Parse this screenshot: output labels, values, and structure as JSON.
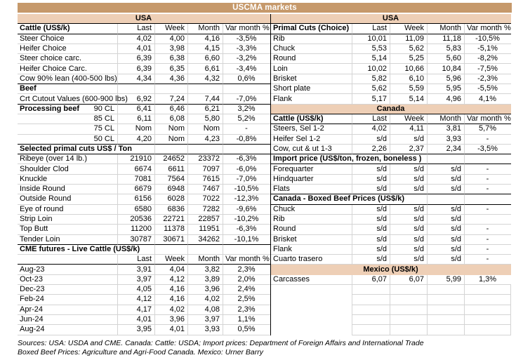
{
  "page": {
    "title": "USCMA markets",
    "footer_line1": "Sources: USA: USDA and CME. Canada: Cattle: USDA; Import prices: Department of Foreign Affairs and International Trade",
    "footer_line2": "Boxed Beef Prices: Agriculture and Agri-Food Canada. Mexico: Urner Barry"
  },
  "colors": {
    "band_dark": "#C6996B",
    "band_light": "#EECFB6",
    "grid": "#D4D4D4"
  },
  "columns": [
    "Last",
    "Week",
    "Month",
    "Var month %"
  ],
  "left_table": {
    "rows": [
      {
        "t": "band",
        "label": "USA"
      },
      {
        "t": "head",
        "label": "Cattle (US$/k)",
        "ha": true
      },
      {
        "t": "data",
        "label": "Steer Choice",
        "v": [
          "4,02",
          "4,00",
          "4,16",
          "-3,5%"
        ]
      },
      {
        "t": "data",
        "label": "Heifer Choice",
        "v": [
          "4,01",
          "3,98",
          "4,15",
          "-3,3%"
        ]
      },
      {
        "t": "data",
        "label": "Steer choice carc.",
        "v": [
          "6,39",
          "6,38",
          "6,60",
          "-3,2%"
        ]
      },
      {
        "t": "data",
        "label": "Heifer Choice Carc.",
        "v": [
          "6,39",
          "6,35",
          "6,61",
          "-3,4%"
        ]
      },
      {
        "t": "data",
        "label": "Cow 90% lean (400-500 lbs)",
        "v": [
          "4,34",
          "4,36",
          "4,32",
          "0,6%"
        ]
      },
      {
        "t": "sec",
        "label": "Beef",
        "span": 1,
        "ha": true
      },
      {
        "t": "data",
        "label": "Crt Cutout Values (600-900 lbs)",
        "v": [
          "6,92",
          "7,24",
          "7,44",
          "-7,0%"
        ]
      },
      {
        "t": "split",
        "label": "Processing beef",
        "sub": "90 CL",
        "v": [
          "6,41",
          "6,46",
          "6,21",
          "3,2%"
        ],
        "ha": true
      },
      {
        "t": "data",
        "label": "85 CL",
        "align": "right",
        "v": [
          "6,11",
          "6,08",
          "5,80",
          "5,2%"
        ]
      },
      {
        "t": "data",
        "label": "75 CL",
        "align": "right",
        "v": [
          "Nom",
          "Nom",
          "Nom",
          "-"
        ]
      },
      {
        "t": "data",
        "label": "50 CL",
        "align": "right",
        "v": [
          "4,20",
          "Nom",
          "4,23",
          "-0,8%"
        ]
      },
      {
        "t": "sec",
        "label": "Selected primal cuts US$ / Ton",
        "span": 2,
        "ha": true,
        "hb": true
      },
      {
        "t": "data",
        "label": "Ribeye (over 14 lb.)",
        "v": [
          "21910",
          "24652",
          "23372",
          "-6,3%"
        ]
      },
      {
        "t": "data",
        "label": "Shoulder Clod",
        "v": [
          "6674",
          "6611",
          "7097",
          "-6,0%"
        ]
      },
      {
        "t": "data",
        "label": "Knuckle",
        "v": [
          "7081",
          "7564",
          "7615",
          "-7,0%"
        ]
      },
      {
        "t": "data",
        "label": "Inside Round",
        "v": [
          "6679",
          "6948",
          "7467",
          "-10,5%"
        ]
      },
      {
        "t": "data",
        "label": "Outside Round",
        "v": [
          "6156",
          "6028",
          "7022",
          "-12,3%"
        ]
      },
      {
        "t": "data",
        "label": "Eye of round",
        "v": [
          "6580",
          "6836",
          "7282",
          "-9,6%"
        ]
      },
      {
        "t": "data",
        "label": "Strip Loin",
        "v": [
          "20536",
          "22721",
          "22857",
          "-10,2%"
        ]
      },
      {
        "t": "data",
        "label": "Top Butt",
        "v": [
          "11200",
          "11378",
          "11951",
          "-6,3%"
        ]
      },
      {
        "t": "data",
        "label": "Tender Loin",
        "v": [
          "30787",
          "30671",
          "34262",
          "-10,1%"
        ]
      },
      {
        "t": "sec",
        "label": "CME futures - Live Cattle (US$/k)",
        "span": 2,
        "ha": true
      },
      {
        "t": "head",
        "label": ""
      },
      {
        "t": "data",
        "label": "Aug-23",
        "v": [
          "3,91",
          "4,04",
          "3,82",
          "2,3%"
        ]
      },
      {
        "t": "data",
        "label": "Oct-23",
        "v": [
          "3,97",
          "4,12",
          "3,89",
          "2,0%"
        ]
      },
      {
        "t": "data",
        "label": "Dec-23",
        "v": [
          "4,05",
          "4,16",
          "3,96",
          "2,4%"
        ]
      },
      {
        "t": "data",
        "label": "Feb-24",
        "v": [
          "4,12",
          "4,16",
          "4,02",
          "2,5%"
        ]
      },
      {
        "t": "data",
        "label": "Apr-24",
        "v": [
          "4,17",
          "4,02",
          "4,08",
          "2,3%"
        ]
      },
      {
        "t": "data",
        "label": "Jun-24",
        "v": [
          "4,01",
          "3,96",
          "3,97",
          "1,1%"
        ]
      },
      {
        "t": "data",
        "label": "Aug-24",
        "v": [
          "3,95",
          "4,01",
          "3,93",
          "0,5%"
        ]
      }
    ]
  },
  "right_table": {
    "rows": [
      {
        "t": "band",
        "label": "USA"
      },
      {
        "t": "head",
        "label": "Primal Cuts (Choice)",
        "ha": true
      },
      {
        "t": "data",
        "label": "Rib",
        "v": [
          "10,01",
          "11,09",
          "11,18",
          "-10,5%"
        ]
      },
      {
        "t": "data",
        "label": "Chuck",
        "v": [
          "5,53",
          "5,62",
          "5,83",
          "-5,1%"
        ]
      },
      {
        "t": "data",
        "label": "Round",
        "v": [
          "5,14",
          "5,25",
          "5,60",
          "-8,2%"
        ]
      },
      {
        "t": "data",
        "label": "Loin",
        "v": [
          "10,02",
          "10,66",
          "10,84",
          "-7,5%"
        ]
      },
      {
        "t": "data",
        "label": "Brisket",
        "v": [
          "5,82",
          "6,10",
          "5,96",
          "-2,3%"
        ]
      },
      {
        "t": "data",
        "label": "Short plate",
        "v": [
          "5,62",
          "5,59",
          "5,95",
          "-5,5%"
        ]
      },
      {
        "t": "data",
        "label": "Flank",
        "v": [
          "5,17",
          "5,14",
          "4,96",
          "4,1%"
        ]
      },
      {
        "t": "band",
        "label": "Canada"
      },
      {
        "t": "head",
        "label": "Cattle (US$/k)",
        "ha": true
      },
      {
        "t": "data",
        "label": "Steers, Sel 1-2",
        "v": [
          "4,02",
          "4,11",
          "3,81",
          "5,7%"
        ]
      },
      {
        "t": "data",
        "label": "Heifer Sel 1-2",
        "v": [
          "s/d",
          "s/d",
          "3,93",
          "-"
        ]
      },
      {
        "t": "data",
        "label": "Cow, cut & ut 1-3",
        "v": [
          "2,26",
          "2,37",
          "2,34",
          "-3,5%"
        ]
      },
      {
        "t": "sec",
        "label": "Import price (US$/ton, frozen, boneless )",
        "span": 3,
        "ha": true,
        "hb": true
      },
      {
        "t": "data",
        "label": "Forequarter",
        "v": [
          "s/d",
          "s/d",
          "s/d",
          "-"
        ]
      },
      {
        "t": "data",
        "label": "Hindquarter",
        "v": [
          "s/d",
          "s/d",
          "s/d",
          "-"
        ]
      },
      {
        "t": "data",
        "label": "Flats",
        "v": [
          "s/d",
          "s/d",
          "s/d",
          "-"
        ]
      },
      {
        "t": "sec",
        "label": "Canada - Boxed Beef Prices (US$/k)",
        "span": 3,
        "ha": true,
        "hb": true
      },
      {
        "t": "data",
        "label": "Chuck",
        "v": [
          "s/d",
          "s/d",
          "s/d",
          "-"
        ]
      },
      {
        "t": "data",
        "label": "Rib",
        "v": [
          "s/d",
          "s/d",
          "s/d",
          ""
        ]
      },
      {
        "t": "data",
        "label": "Round",
        "v": [
          "s/d",
          "s/d",
          "s/d",
          "-"
        ]
      },
      {
        "t": "data",
        "label": "Brisket",
        "v": [
          "s/d",
          "s/d",
          "s/d",
          "-"
        ]
      },
      {
        "t": "data",
        "label": "Flank",
        "v": [
          "s/d",
          "s/d",
          "s/d",
          "-"
        ]
      },
      {
        "t": "data",
        "label": "Cuarto trasero",
        "v": [
          "s/d",
          "s/d",
          "s/d",
          "-"
        ]
      },
      {
        "t": "band",
        "label": "Mexico (US$/k)"
      },
      {
        "t": "data",
        "label": "Carcasses",
        "v": [
          "6,07",
          "6,07",
          "5,99",
          "1,3%"
        ]
      },
      {
        "t": "empty"
      },
      {
        "t": "empty"
      },
      {
        "t": "empty"
      },
      {
        "t": "empty"
      },
      {
        "t": "empty"
      }
    ]
  }
}
